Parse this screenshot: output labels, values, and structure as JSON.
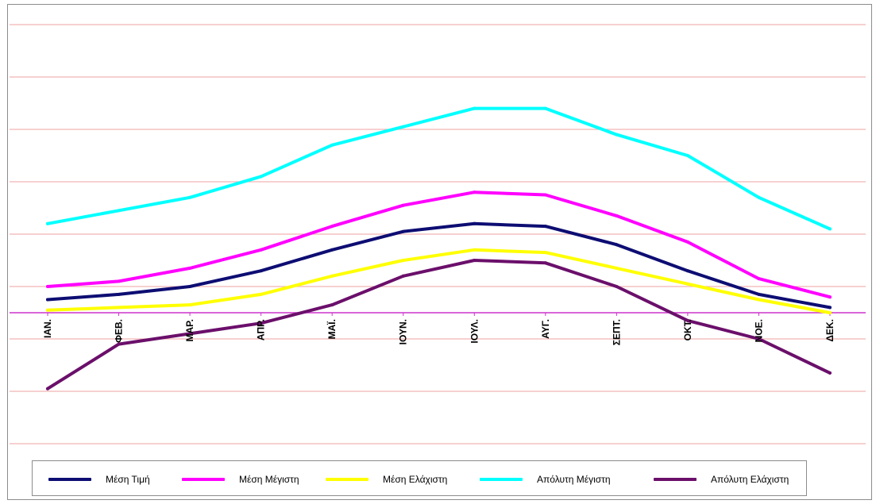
{
  "chart_data": {
    "type": "line",
    "categories": [
      "ΙΑΝ.",
      "ΦΕΒ.",
      "ΜΑΡ.",
      "ΑΠΡ.",
      "ΜΑΪ.",
      "ΙΟΥΝ.",
      "ΙΟΥΛ.",
      "ΑΥΓ.",
      "ΣΕΠΤ.",
      "ΟΚΤ.",
      "ΝΟΕ.",
      "ΔΕΚ."
    ],
    "ylim": [
      -6,
      11
    ],
    "grid": true,
    "legend_position": "bottom",
    "series": [
      {
        "name": "Μέση Τιμή",
        "color": "#0d0d73",
        "values": [
          0.5,
          0.7,
          1.0,
          1.6,
          2.4,
          3.1,
          3.4,
          3.3,
          2.6,
          1.6,
          0.7,
          0.2
        ]
      },
      {
        "name": "Μέση Μέγιστη",
        "color": "#ff00ff",
        "values": [
          1.0,
          1.2,
          1.7,
          2.4,
          3.3,
          4.1,
          4.6,
          4.5,
          3.7,
          2.7,
          1.3,
          0.6
        ]
      },
      {
        "name": "Μέση Ελάχιστη",
        "color": "#ffff00",
        "values": [
          0.1,
          0.2,
          0.3,
          0.7,
          1.4,
          2.0,
          2.4,
          2.3,
          1.7,
          1.1,
          0.5,
          0.0
        ]
      },
      {
        "name": "Απόλυτη Μέγιστη",
        "color": "#00ffff",
        "values": [
          3.4,
          3.9,
          4.4,
          5.2,
          6.4,
          7.1,
          7.8,
          7.8,
          6.8,
          6.0,
          4.4,
          3.2
        ]
      },
      {
        "name": "Απόλυτη Ελάχιστη",
        "color": "#6b0f6b",
        "values": [
          -2.9,
          -1.2,
          -0.8,
          -0.4,
          0.3,
          1.4,
          2.0,
          1.9,
          1.0,
          -0.3,
          -1.0,
          -2.3
        ]
      }
    ]
  }
}
